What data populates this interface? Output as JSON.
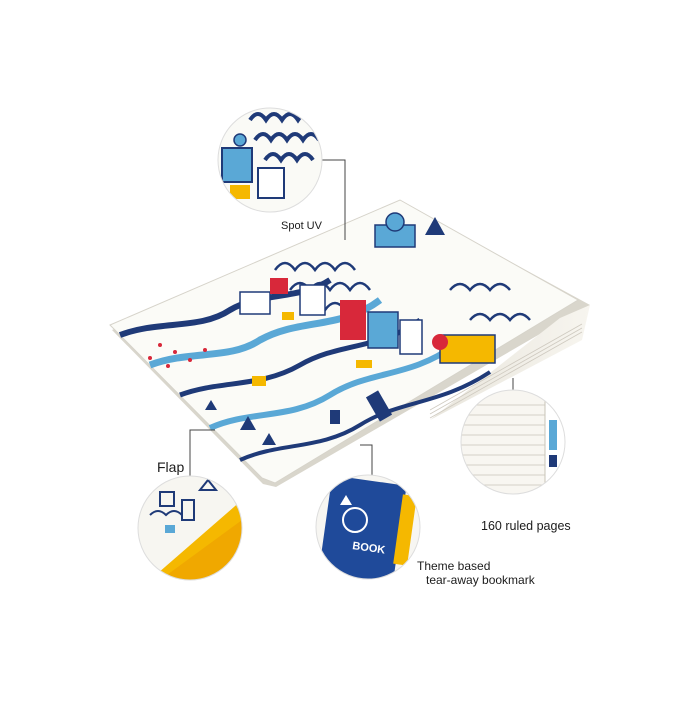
{
  "product": {
    "description_labels": {
      "spot_uv": "Spot UV",
      "flap": "Flap",
      "ruled_pages": "160 ruled pages",
      "bookmark_line1": "Theme based",
      "bookmark_line2": "tear-away bookmark"
    },
    "bookmark_text": "BOOK"
  },
  "colors": {
    "background": "#ffffff",
    "ink_blue": "#1f3a78",
    "sky_blue": "#5aa8d6",
    "red": "#d8283a",
    "yellow": "#f5b800",
    "cover_white": "#fbfbf7",
    "leader_line": "#444444"
  }
}
